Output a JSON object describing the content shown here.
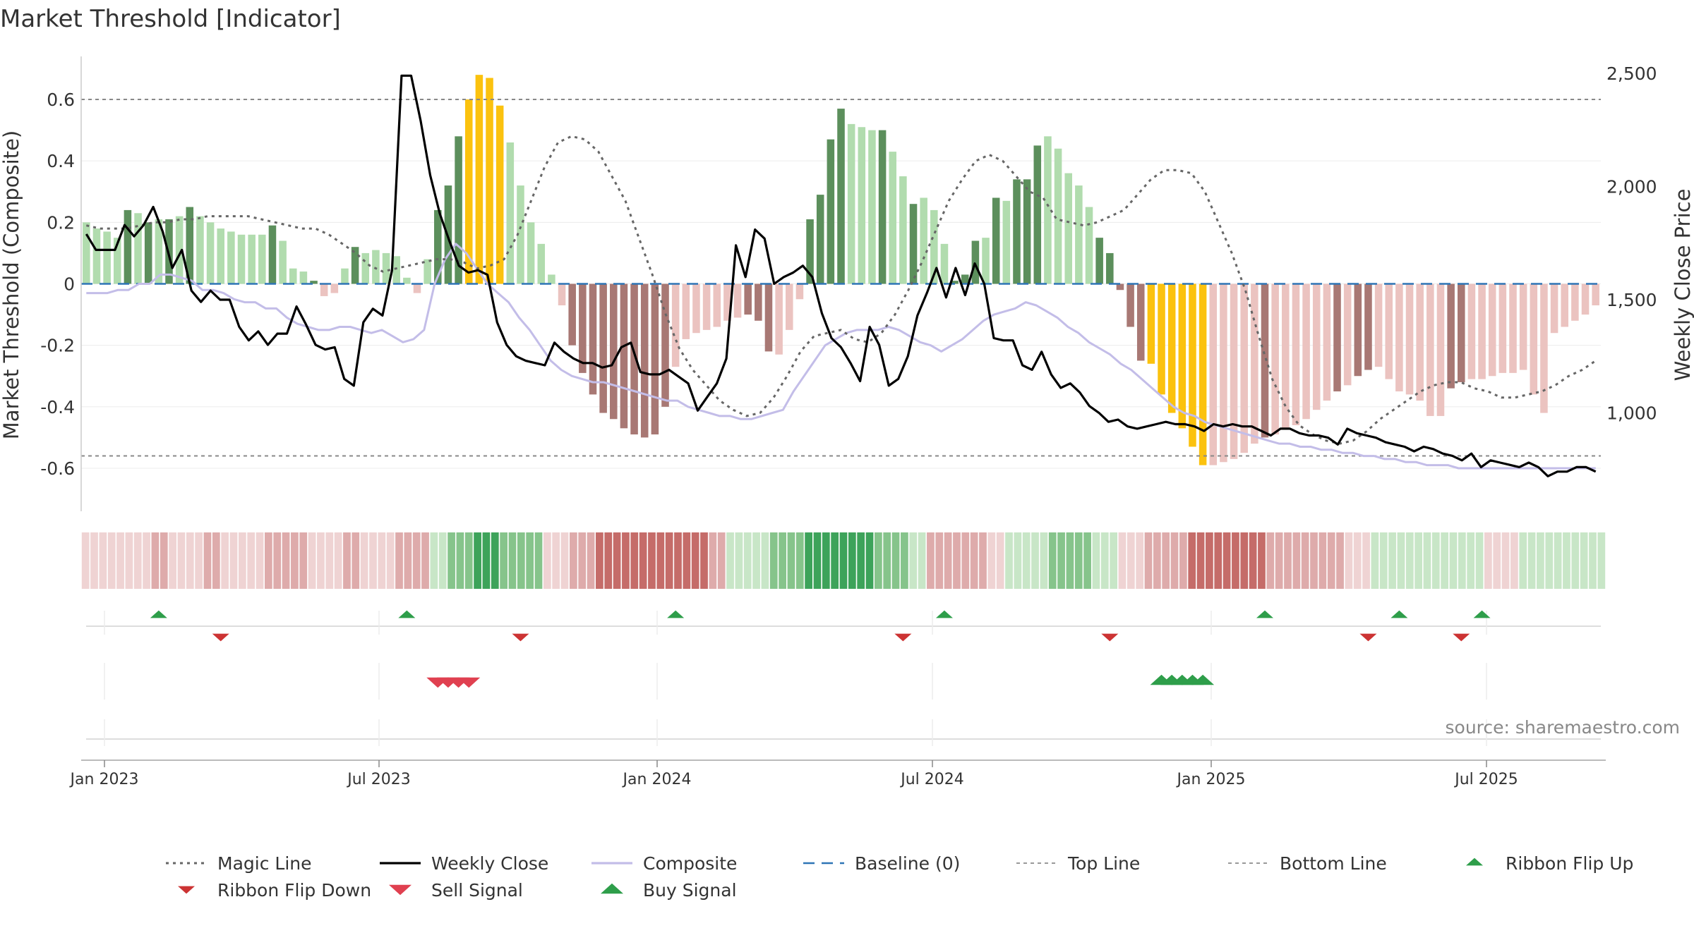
{
  "chart_data": {
    "type": "bar",
    "title": "Market Threshold [Indicator]",
    "ylabel": "Market Threshold (Composite)",
    "y2label": "Weekly Close Price",
    "source": "source: sharemaestro.com",
    "ylim": [
      -0.74,
      0.74
    ],
    "y2lim": [
      565,
      2575
    ],
    "yticks": [
      "0.6",
      "0.4",
      "0.2",
      "0",
      "-0.2",
      "-0.4",
      "-0.6"
    ],
    "y2ticks": [
      "2,500",
      "2,000",
      "1,500",
      "1,000"
    ],
    "date_ticks": [
      "Jan 2023",
      "Jul 2023",
      "Jan 2024",
      "Jul 2024",
      "Jan 2025",
      "Jul 2025"
    ],
    "top_line": 0.6,
    "bottom_line": -0.56,
    "baseline": 0,
    "grid": true,
    "legend_position": "bottom",
    "legend": [
      {
        "label": "Magic Line",
        "kind": "dotted",
        "color": "#666666"
      },
      {
        "label": "Weekly Close",
        "kind": "solid",
        "color": "#000000"
      },
      {
        "label": "Composite",
        "kind": "solid",
        "color": "#c3bde8"
      },
      {
        "label": "Baseline (0)",
        "kind": "dashed",
        "color": "#2e75b6"
      },
      {
        "label": "Top Line",
        "kind": "dashed-thin",
        "color": "#999999"
      },
      {
        "label": "Bottom Line",
        "kind": "dashed-thin",
        "color": "#999999"
      },
      {
        "label": "Ribbon Flip Up",
        "kind": "triangle-up",
        "color": "#2e9e4a"
      },
      {
        "label": "Ribbon Flip Down",
        "kind": "triangle-down",
        "color": "#cc3333"
      },
      {
        "label": "Sell Signal",
        "kind": "triangle-down",
        "color": "#e04050"
      },
      {
        "label": "Buy Signal",
        "kind": "triangle-up",
        "color": "#2e9e4a"
      }
    ],
    "colors": {
      "pos_dark": "#5c8f5c",
      "pos_light": "#b1dcae",
      "neg_dark": "#a87874",
      "neg_light": "#ebc3c0",
      "extreme": "#fbc20e",
      "magic": "#666666",
      "close": "#000000",
      "composite": "#c3bde8",
      "baseline": "#2e75b6"
    },
    "bars": [
      0.2,
      0.18,
      0.17,
      0.15,
      0.24,
      0.23,
      0.2,
      0.21,
      0.21,
      0.22,
      0.25,
      0.22,
      0.2,
      0.18,
      0.17,
      0.16,
      0.16,
      0.16,
      0.19,
      0.14,
      0.05,
      0.04,
      0.01,
      -0.04,
      -0.03,
      0.05,
      0.12,
      0.1,
      0.11,
      0.1,
      0.09,
      0.02,
      -0.03,
      0.08,
      0.24,
      0.32,
      0.48,
      0.6,
      0.68,
      0.67,
      0.58,
      0.46,
      0.32,
      0.2,
      0.13,
      0.03,
      -0.07,
      -0.2,
      -0.29,
      -0.36,
      -0.42,
      -0.44,
      -0.47,
      -0.49,
      -0.5,
      -0.49,
      -0.4,
      -0.27,
      -0.18,
      -0.16,
      -0.15,
      -0.14,
      -0.12,
      -0.11,
      -0.1,
      -0.12,
      -0.22,
      -0.23,
      -0.15,
      -0.05,
      0.21,
      0.29,
      0.47,
      0.57,
      0.52,
      0.51,
      0.5,
      0.5,
      0.43,
      0.35,
      0.26,
      0.28,
      0.24,
      0.13,
      0.01,
      0.03,
      0.14,
      0.15,
      0.28,
      0.27,
      0.34,
      0.34,
      0.45,
      0.48,
      0.44,
      0.36,
      0.32,
      0.25,
      0.15,
      0.1,
      -0.02,
      -0.14,
      -0.25,
      -0.26,
      -0.36,
      -0.42,
      -0.47,
      -0.53,
      -0.59,
      -0.59,
      -0.58,
      -0.57,
      -0.55,
      -0.52,
      -0.5,
      -0.49,
      -0.47,
      -0.46,
      -0.44,
      -0.41,
      -0.38,
      -0.35,
      -0.33,
      -0.3,
      -0.28,
      -0.27,
      -0.31,
      -0.35,
      -0.36,
      -0.38,
      -0.43,
      -0.43,
      -0.34,
      -0.32,
      -0.31,
      -0.31,
      -0.3,
      -0.29,
      -0.29,
      -0.28,
      -0.36,
      -0.42,
      -0.16,
      -0.14,
      -0.12,
      -0.1,
      -0.07
    ],
    "bar_shades": "LLLLDLDLDLDLLLLLLLDLLLDLLLDLLLLLLLDDDEEEELLLLLLDDDDDDDDDDLLLLLLLDDDLLLDDDDLLLDLLDLLLDDDLDLDDDLLLLLDDDDDEEEEEELLLLLDLLLLLLDLDDLLLLLLLDDLLLLLL",
    "close_series": [
      1790,
      1720,
      1720,
      1720,
      1830,
      1780,
      1830,
      1910,
      1800,
      1640,
      1720,
      1540,
      1490,
      1540,
      1500,
      1500,
      1380,
      1320,
      1360,
      1300,
      1350,
      1350,
      1470,
      1390,
      1300,
      1280,
      1290,
      1150,
      1120,
      1400,
      1460,
      1430,
      1630,
      2490,
      2490,
      2290,
      2050,
      1880,
      1760,
      1650,
      1620,
      1630,
      1610,
      1400,
      1300,
      1250,
      1230,
      1220,
      1210,
      1310,
      1270,
      1240,
      1220,
      1220,
      1200,
      1210,
      1290,
      1310,
      1180,
      1170,
      1170,
      1190,
      1160,
      1130,
      1010,
      1070,
      1130,
      1240,
      1740,
      1600,
      1810,
      1770,
      1570,
      1600,
      1620,
      1650,
      1600,
      1440,
      1330,
      1290,
      1220,
      1140,
      1380,
      1300,
      1120,
      1150,
      1250,
      1430,
      1530,
      1640,
      1510,
      1640,
      1520,
      1660,
      1570,
      1330,
      1320,
      1320,
      1210,
      1190,
      1270,
      1170,
      1110,
      1130,
      1090,
      1030,
      1000,
      960,
      970,
      940,
      930,
      940,
      950,
      960,
      950,
      950,
      940,
      920,
      950,
      940,
      950,
      940,
      940,
      920,
      900,
      930,
      930,
      910,
      900,
      900,
      890,
      860,
      930,
      910,
      900,
      890,
      870,
      860,
      850,
      830,
      850,
      840,
      820,
      810,
      790,
      820,
      760,
      790,
      780,
      770,
      760,
      780,
      760,
      720,
      740,
      740,
      760,
      760,
      740
    ],
    "composite_series": [
      -0.03,
      -0.03,
      -0.03,
      -0.02,
      -0.02,
      0,
      0,
      0.03,
      0.03,
      0.02,
      0.01,
      -0.02,
      -0.02,
      -0.03,
      -0.05,
      -0.06,
      -0.06,
      -0.08,
      -0.08,
      -0.11,
      -0.13,
      -0.14,
      -0.15,
      -0.15,
      -0.14,
      -0.14,
      -0.15,
      -0.16,
      -0.15,
      -0.17,
      -0.19,
      -0.18,
      -0.15,
      0,
      0.08,
      0.13,
      0.1,
      0.05,
      0,
      -0.03,
      -0.06,
      -0.11,
      -0.15,
      -0.2,
      -0.25,
      -0.28,
      -0.3,
      -0.31,
      -0.32,
      -0.32,
      -0.33,
      -0.34,
      -0.35,
      -0.36,
      -0.37,
      -0.38,
      -0.38,
      -0.4,
      -0.41,
      -0.42,
      -0.43,
      -0.43,
      -0.44,
      -0.44,
      -0.43,
      -0.42,
      -0.41,
      -0.35,
      -0.3,
      -0.25,
      -0.2,
      -0.18,
      -0.16,
      -0.15,
      -0.15,
      -0.15,
      -0.14,
      -0.15,
      -0.17,
      -0.19,
      -0.2,
      -0.22,
      -0.2,
      -0.18,
      -0.15,
      -0.12,
      -0.1,
      -0.09,
      -0.08,
      -0.06,
      -0.07,
      -0.09,
      -0.11,
      -0.14,
      -0.16,
      -0.19,
      -0.21,
      -0.23,
      -0.26,
      -0.28,
      -0.31,
      -0.34,
      -0.37,
      -0.4,
      -0.42,
      -0.43,
      -0.45,
      -0.46,
      -0.47,
      -0.48,
      -0.49,
      -0.5,
      -0.51,
      -0.52,
      -0.52,
      -0.53,
      -0.53,
      -0.54,
      -0.54,
      -0.55,
      -0.55,
      -0.56,
      -0.56,
      -0.57,
      -0.57,
      -0.58,
      -0.58,
      -0.59,
      -0.59,
      -0.59,
      -0.6,
      -0.6,
      -0.6,
      -0.6,
      -0.6,
      -0.6,
      -0.6,
      -0.6,
      -0.6,
      -0.6,
      -0.6,
      -0.6,
      -0.6,
      -0.6
    ],
    "magic_series": [
      0.19,
      0.18,
      0.18,
      0.18,
      0.19,
      0.2,
      0.2,
      0.21,
      0.21,
      0.22,
      0.22,
      0.22,
      0.22,
      0.21,
      0.2,
      0.19,
      0.18,
      0.18,
      0.16,
      0.13,
      0.1,
      0.06,
      0.04,
      0.05,
      0.06,
      0.07,
      0.08,
      0.08,
      0.07,
      0.05,
      0.06,
      0.08,
      0.16,
      0.27,
      0.38,
      0.46,
      0.48,
      0.47,
      0.43,
      0.35,
      0.27,
      0.15,
      0.03,
      -0.1,
      -0.21,
      -0.28,
      -0.33,
      -0.38,
      -0.41,
      -0.43,
      -0.42,
      -0.37,
      -0.3,
      -0.22,
      -0.17,
      -0.16,
      -0.15,
      -0.18,
      -0.19,
      -0.16,
      -0.1,
      -0.02,
      0.07,
      0.17,
      0.27,
      0.34,
      0.4,
      0.42,
      0.4,
      0.35,
      0.3,
      0.28,
      0.21,
      0.2,
      0.19,
      0.2,
      0.22,
      0.24,
      0.29,
      0.34,
      0.37,
      0.37,
      0.36,
      0.3,
      0.2,
      0.1,
      -0.02,
      -0.17,
      -0.31,
      -0.4,
      -0.46,
      -0.49,
      -0.51,
      -0.52,
      -0.51,
      -0.48,
      -0.44,
      -0.41,
      -0.38,
      -0.35,
      -0.33,
      -0.32,
      -0.32,
      -0.34,
      -0.35,
      -0.37,
      -0.37,
      -0.36,
      -0.35,
      -0.33,
      -0.3,
      -0.28,
      -0.25
    ],
    "ribbon": [
      -1,
      -1,
      -1,
      -1,
      -1,
      -1,
      -1,
      -1,
      -2,
      -2,
      -1,
      -1,
      -1,
      -1,
      -2,
      -2,
      -1,
      -1,
      -1,
      -1,
      -1,
      -2,
      -2,
      -2,
      -2,
      -2,
      -1,
      -1,
      -1,
      -1,
      -2,
      -2,
      -1,
      -1,
      -1,
      -1,
      -2,
      -2,
      -2,
      -2,
      1,
      1,
      2,
      2,
      2,
      3,
      3,
      3,
      2,
      2,
      2,
      2,
      2,
      -1,
      -1,
      -1,
      -2,
      -2,
      -2,
      -3,
      -3,
      -3,
      -3,
      -3,
      -3,
      -3,
      -3,
      -3,
      -3,
      -3,
      -3,
      -3,
      -2,
      -2,
      1,
      1,
      1,
      1,
      1,
      2,
      2,
      2,
      2,
      3,
      3,
      3,
      3,
      3,
      3,
      3,
      3,
      2,
      2,
      2,
      2,
      1,
      1,
      -2,
      -2,
      -2,
      -2,
      -2,
      -2,
      -2,
      -1,
      -1,
      1,
      1,
      1,
      1,
      1,
      2,
      2,
      2,
      2,
      2,
      1,
      1,
      1,
      -1,
      -1,
      -1,
      -2,
      -2,
      -2,
      -2,
      -2,
      -3,
      -3,
      -3,
      -3,
      -3,
      -3,
      -3,
      -3,
      -3,
      -2,
      -2,
      -2,
      -2,
      -2,
      -2,
      -2,
      -2,
      -2,
      -1,
      -1,
      -1,
      1,
      1,
      1,
      1,
      1,
      1,
      1,
      1,
      1,
      1,
      1,
      1,
      1,
      -1,
      -1,
      -1,
      -1,
      1,
      1,
      1,
      1,
      1,
      1,
      1,
      1,
      1,
      1
    ],
    "flip_up_weeks": [
      7,
      31,
      57,
      83,
      114,
      127,
      135
    ],
    "flip_down_weeks": [
      13,
      42,
      79,
      99,
      124,
      133
    ],
    "sell_signal_weeks": [
      34,
      35,
      36,
      37
    ],
    "buy_signal_weeks": [
      104,
      105,
      106,
      107,
      108
    ]
  }
}
